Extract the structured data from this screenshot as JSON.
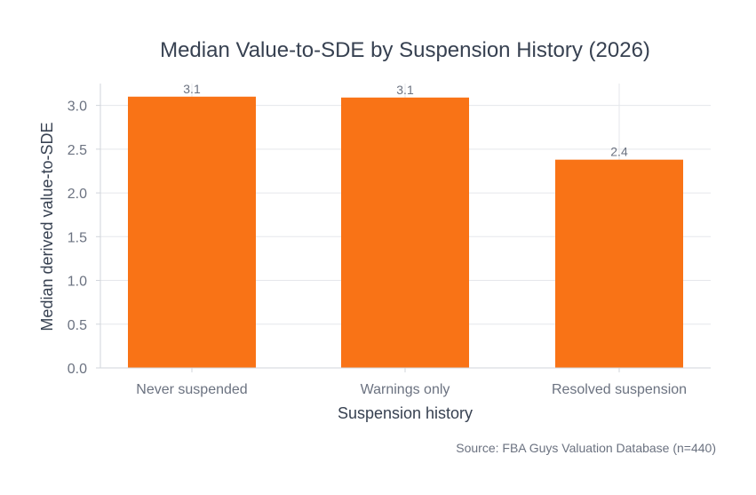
{
  "chart_data": {
    "type": "bar",
    "title": "Median Value-to-SDE by Suspension History (2026)",
    "xlabel": "Suspension history",
    "ylabel": "Median derived value-to-SDE",
    "categories": [
      "Never suspended",
      "Warnings only",
      "Resolved suspension"
    ],
    "values": [
      3.1,
      3.09,
      2.38
    ],
    "data_labels": [
      "3.1",
      "3.1",
      "2.4"
    ],
    "ylim": [
      0,
      3.25
    ],
    "yticks": [
      0.0,
      0.5,
      1.0,
      1.5,
      2.0,
      2.5,
      3.0
    ],
    "ytick_labels": [
      "0.0",
      "0.5",
      "1.0",
      "1.5",
      "2.0",
      "2.5",
      "3.0"
    ],
    "grid": true,
    "bar_color": "#f97316",
    "source": "Source: FBA Guys Valuation Database (n=440)"
  }
}
